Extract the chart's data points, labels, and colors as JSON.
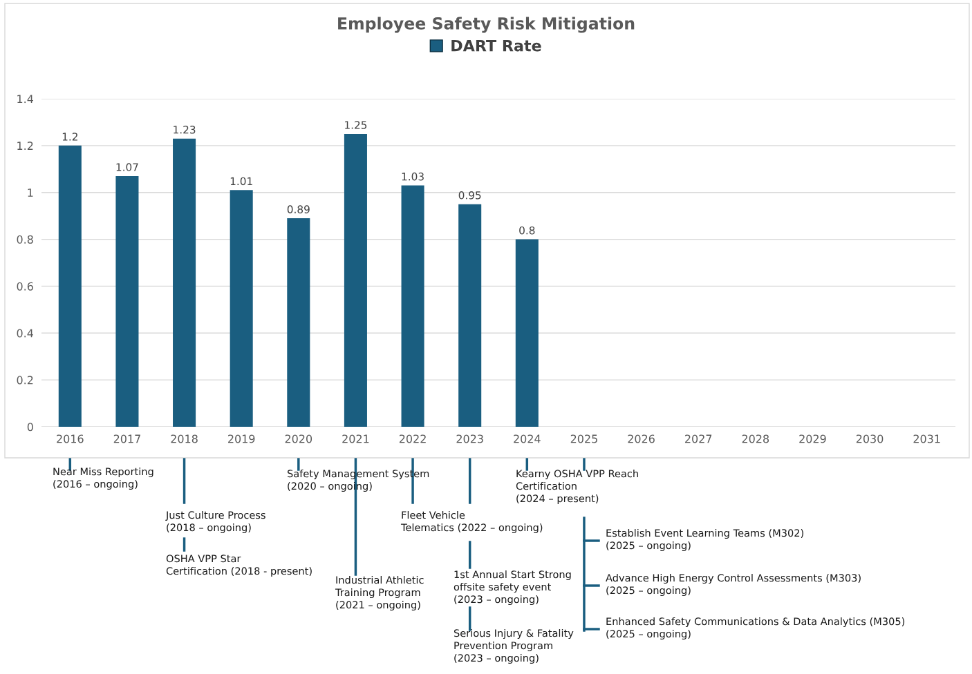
{
  "chart_data": {
    "type": "bar",
    "title": "Employee Safety Risk Mitigation",
    "categories": [
      "2016",
      "2017",
      "2018",
      "2019",
      "2020",
      "2021",
      "2022",
      "2023",
      "2024",
      "2025",
      "2026",
      "2027",
      "2028",
      "2029",
      "2030",
      "2031"
    ],
    "series": [
      {
        "name": "DART Rate",
        "color": "#1a5e80",
        "values": [
          1.2,
          1.07,
          1.23,
          1.01,
          0.89,
          1.25,
          1.03,
          0.95,
          0.8,
          null,
          null,
          null,
          null,
          null,
          null,
          null
        ]
      }
    ],
    "ylim": [
      0,
      1.4
    ],
    "yticks": [
      0,
      0.2,
      0.4,
      0.6,
      0.8,
      1,
      1.2,
      1.4
    ],
    "grid": "y",
    "legend": "top",
    "data_labels": true,
    "annotations": [
      "Near Miss Reporting\n(2016 – ongoing)",
      "Just Culture Process\n(2018 – ongoing)",
      "OSHA VPP Star\nCertification (2018 - present)",
      "Safety Management System\n(2020 – ongoing)",
      "Industrial Athletic\nTraining Program\n(2021 – ongoing)",
      "Fleet Vehicle\nTelematics (2022 – ongoing)",
      "1st Annual Start Strong\noffsite safety event\n(2023 – ongoing)",
      "Serious Injury & Fatality\nPrevention Program\n(2023 – ongoing)",
      "Kearny OSHA VPP Reach\nCertification\n(2024 – present)",
      "Establish Event Learning Teams (M302)\n(2025 – ongoing)",
      "Advance High Energy Control Assessments (M303)\n(2025 – ongoing)",
      "Enhanced Safety Communications & Data Analytics (M305)\n(2025 – ongoing)"
    ]
  }
}
